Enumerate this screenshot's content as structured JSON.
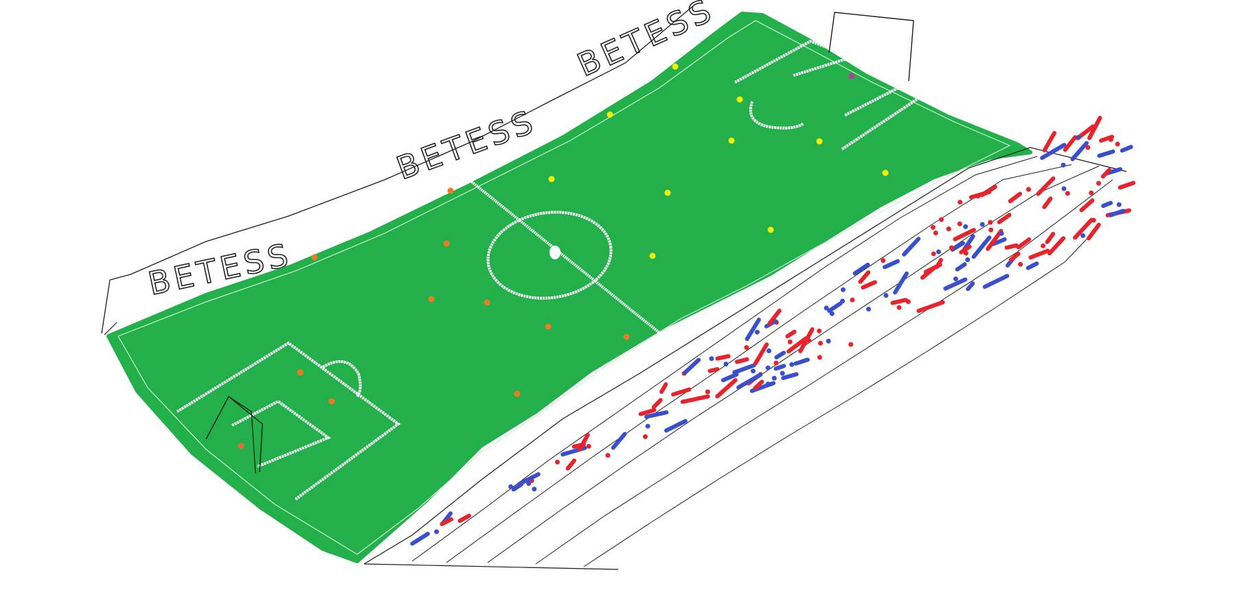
{
  "drawing": {
    "ad_boards": [
      {
        "text": "BETESS"
      },
      {
        "text": "BETESS"
      },
      {
        "text": "BETESS"
      }
    ],
    "colors": {
      "pitch": "#23B04B",
      "pitch_lines": "#FFFFFF",
      "outline": "#1a1a1a",
      "team_yellow": "#F2F200",
      "team_orange": "#F07A24",
      "goalkeeper_top": "#B040A0",
      "goalkeeper_bottom": "#E0703A",
      "fans_red": "#E8232C",
      "fans_blue": "#3A4FD0"
    },
    "players": {
      "yellow_count": 10,
      "orange_count": 10,
      "goalkeepers": 2
    }
  }
}
